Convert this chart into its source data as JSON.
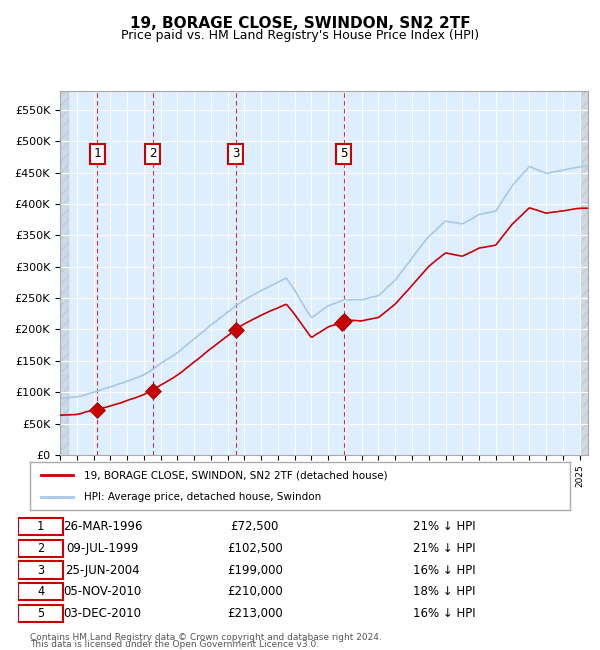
{
  "title": "19, BORAGE CLOSE, SWINDON, SN2 2TF",
  "subtitle": "Price paid vs. HM Land Registry's House Price Index (HPI)",
  "legend_line1": "19, BORAGE CLOSE, SWINDON, SN2 2TF (detached house)",
  "legend_line2": "HPI: Average price, detached house, Swindon",
  "footer1": "Contains HM Land Registry data © Crown copyright and database right 2024.",
  "footer2": "This data is licensed under the Open Government Licence v3.0.",
  "transactions": [
    {
      "num": 1,
      "date": "26-MAR-1996",
      "price": 72500,
      "pct": "21%",
      "year": 1996.23
    },
    {
      "num": 2,
      "date": "09-JUL-1999",
      "price": 102500,
      "pct": "21%",
      "year": 1999.52
    },
    {
      "num": 3,
      "date": "25-JUN-2004",
      "price": 199000,
      "pct": "16%",
      "year": 2004.48
    },
    {
      "num": 4,
      "date": "05-NOV-2010",
      "price": 210000,
      "pct": "18%",
      "year": 2010.84
    },
    {
      "num": 5,
      "date": "03-DEC-2010",
      "price": 213000,
      "pct": "16%",
      "year": 2010.92
    }
  ],
  "hpi_color": "#a8c8e8",
  "price_color": "#cc0000",
  "transaction_marker_color": "#cc0000",
  "vline_color": "#cc0000",
  "box_color": "#cc0000",
  "background_color": "#ddeeff",
  "hatch_color": "#c0c0c0",
  "grid_color": "#ffffff",
  "ylim": [
    0,
    580000
  ],
  "xlim_start": 1994.0,
  "xlim_end": 2025.5
}
